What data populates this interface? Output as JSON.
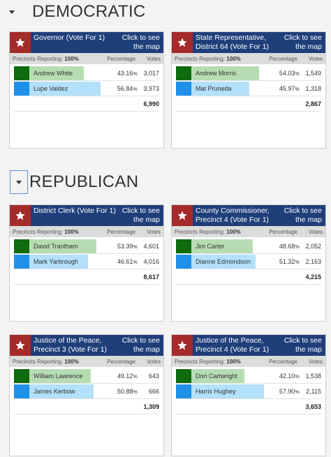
{
  "sections": [
    {
      "title": "DEMOCRATIC"
    },
    {
      "title": "REPUBLICAN"
    }
  ],
  "labels": {
    "map_link": "Click to see the map",
    "precincts_reporting": "Precincts Reporting:",
    "percentage": "Percentage",
    "votes": "Votes"
  },
  "colors": {
    "header_blue": "#1f3f7a",
    "star_red": "#a52a2a",
    "green_swatch": "#0e6b0e",
    "green_bar": "#b7dcb3",
    "blue_swatch": "#1e90e8",
    "blue_bar": "#b3e0fa"
  },
  "races": [
    {
      "title": "Governor (Vote For 1)",
      "precincts": "100%",
      "candidates": [
        {
          "name": "Andrew White",
          "pct": "43.16",
          "share": 0.4316,
          "votes": "3,017",
          "party_color": "green"
        },
        {
          "name": "Lupe Valdez",
          "pct": "56.84",
          "share": 0.5684,
          "votes": "3,973",
          "party_color": "blue"
        }
      ],
      "total": "6,990"
    },
    {
      "title": "State Representative, District 64 (Vote For 1)",
      "precincts": "100%",
      "candidates": [
        {
          "name": "Andrew Morris",
          "pct": "54.03",
          "share": 0.5403,
          "votes": "1,549",
          "party_color": "green"
        },
        {
          "name": "Mat Pruneda",
          "pct": "45.97",
          "share": 0.4597,
          "votes": "1,318",
          "party_color": "blue"
        }
      ],
      "total": "2,867"
    },
    {
      "title": "District Clerk (Vote For 1)",
      "precincts": "100%",
      "candidates": [
        {
          "name": "David Trantham",
          "pct": "53.39",
          "share": 0.5339,
          "votes": "4,601",
          "party_color": "green"
        },
        {
          "name": "Mark Yarbrough",
          "pct": "46.61",
          "share": 0.4661,
          "votes": "4,016",
          "party_color": "blue"
        }
      ],
      "total": "8,617"
    },
    {
      "title": "County Commissioner, Precinct 4 (Vote For 1)",
      "precincts": "100%",
      "candidates": [
        {
          "name": "Jim Carter",
          "pct": "48.68",
          "share": 0.4868,
          "votes": "2,052",
          "party_color": "green"
        },
        {
          "name": "Dianne Edmondson",
          "pct": "51.32",
          "share": 0.5132,
          "votes": "2,163",
          "party_color": "blue"
        }
      ],
      "total": "4,215"
    },
    {
      "title": "Justice of the Peace, Precinct 3 (Vote For 1)",
      "precincts": "100%",
      "candidates": [
        {
          "name": "William Lawrence",
          "pct": "49.12",
          "share": 0.4912,
          "votes": "643",
          "party_color": "green"
        },
        {
          "name": "James Kerbow",
          "pct": "50.88",
          "share": 0.5088,
          "votes": "666",
          "party_color": "blue"
        }
      ],
      "total": "1,309"
    },
    {
      "title": "Justice of the Peace, Precinct 4 (Vote For 1)",
      "precincts": "100%",
      "candidates": [
        {
          "name": "Don Cartwright",
          "pct": "42.10",
          "share": 0.421,
          "votes": "1,538",
          "party_color": "green"
        },
        {
          "name": "Harris Hughey",
          "pct": "57.90",
          "share": 0.579,
          "votes": "2,115",
          "party_color": "blue"
        }
      ],
      "total": "3,653"
    }
  ]
}
